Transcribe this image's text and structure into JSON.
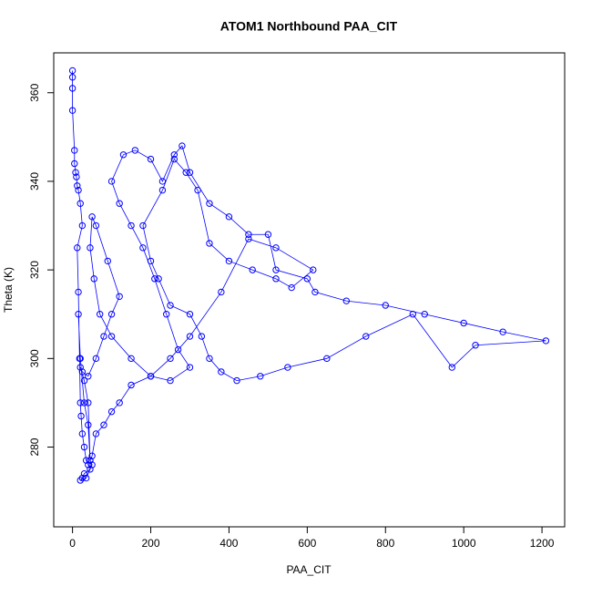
{
  "chart_data": {
    "type": "line",
    "title": "ATOM1 Northbound PAA_CIT",
    "xlabel": "PAA_CIT",
    "ylabel": "Theta (K)",
    "color": "#0000ff",
    "markers": true,
    "x": [
      0,
      0,
      0,
      0,
      5,
      5,
      8,
      10,
      12,
      15,
      20,
      25,
      12,
      15,
      18,
      20,
      22,
      25,
      30,
      35,
      40,
      45,
      30,
      25,
      20,
      35,
      50,
      45,
      40,
      30,
      20,
      25,
      40,
      60,
      80,
      100,
      120,
      90,
      60,
      50,
      45,
      55,
      70,
      100,
      150,
      200,
      250,
      300,
      270,
      240,
      210,
      180,
      150,
      120,
      100,
      130,
      160,
      200,
      230,
      260,
      280,
      300,
      350,
      400,
      450,
      500,
      520,
      600,
      620,
      700,
      800,
      900,
      1000,
      1100,
      1210,
      1030,
      970,
      870,
      750,
      650,
      550,
      480,
      420,
      380,
      350,
      330,
      300,
      250,
      220,
      200,
      180,
      230,
      260,
      290,
      320,
      350,
      400,
      460,
      520,
      560,
      615,
      520,
      450,
      380,
      300,
      250,
      200,
      150,
      120,
      100,
      80,
      60,
      50,
      45,
      40,
      30,
      20,
      15
    ],
    "values": [
      365,
      363.5,
      361,
      356,
      347,
      344,
      342,
      341,
      339,
      338,
      335,
      330,
      325,
      315,
      300,
      290,
      287,
      283,
      280,
      277,
      276,
      275,
      274,
      273,
      272.5,
      273,
      276,
      277,
      290,
      295,
      298,
      297,
      296,
      300,
      305,
      310,
      314,
      322,
      330,
      332,
      325,
      318,
      310,
      305,
      300,
      296,
      295,
      298,
      302,
      310,
      318,
      325,
      330,
      335,
      340,
      346,
      347,
      345,
      340,
      346,
      348,
      342,
      335,
      332,
      328,
      328,
      320,
      318,
      315,
      313,
      312,
      310,
      308,
      306,
      304,
      303,
      298,
      310,
      305,
      300,
      298,
      296,
      295,
      297,
      300,
      305,
      310,
      312,
      318,
      322,
      330,
      338,
      345,
      342,
      338,
      326,
      322,
      320,
      318,
      316,
      320,
      325,
      327,
      315,
      305,
      300,
      296,
      294,
      290,
      288,
      285,
      283,
      278,
      277,
      285,
      290,
      300,
      310
    ],
    "xlim": [
      -48,
      1258
    ],
    "ylim": [
      262,
      369
    ],
    "xticks": [
      0,
      200,
      400,
      600,
      800,
      1000,
      1200
    ],
    "yticks": [
      280,
      300,
      320,
      340,
      360
    ]
  }
}
